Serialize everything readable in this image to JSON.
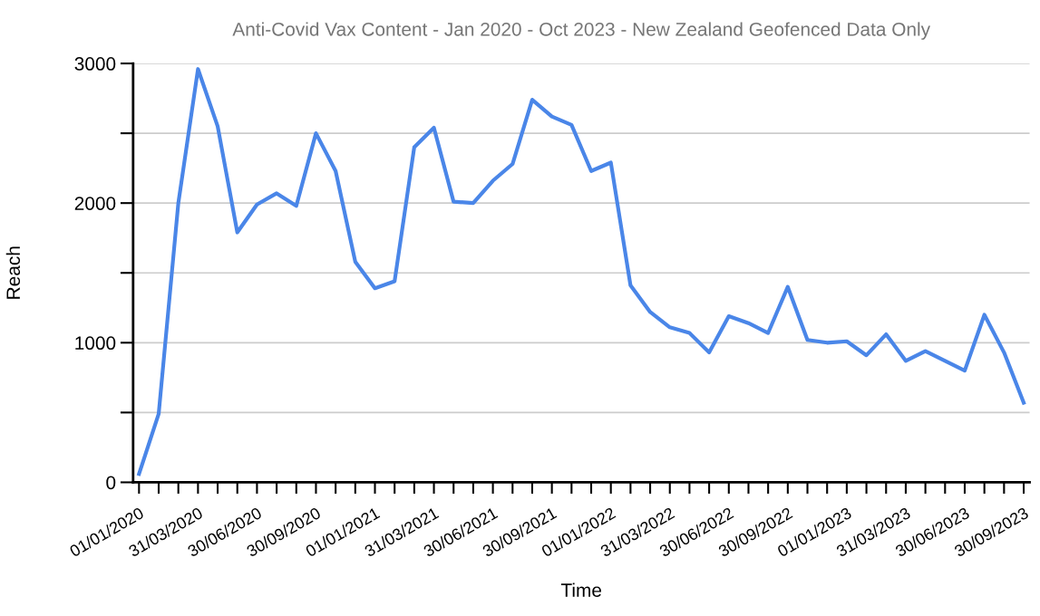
{
  "chart_data": {
    "type": "line",
    "title": "Anti-Covid Vax Content - Jan 2020 - Oct 2023 - New Zealand Geofenced Data Only",
    "xlabel": "Time",
    "ylabel": "Reach",
    "categories": [
      "01/01/2020",
      null,
      null,
      "31/03/2020",
      null,
      null,
      "30/06/2020",
      null,
      null,
      "30/09/2020",
      null,
      null,
      "01/01/2021",
      null,
      null,
      "31/03/2021",
      null,
      null,
      "30/06/2021",
      null,
      null,
      "30/09/2021",
      null,
      null,
      "01/01/2022",
      null,
      null,
      "31/03/2022",
      null,
      null,
      "30/06/2022",
      null,
      null,
      "30/09/2022",
      null,
      null,
      "01/01/2023",
      null,
      null,
      "31/03/2023",
      null,
      null,
      "30/06/2023",
      null,
      null,
      "30/09/2023"
    ],
    "series": [
      {
        "color": "#4a86e8",
        "values": [
          60,
          490,
          2000,
          2960,
          2550,
          1790,
          1990,
          2070,
          1980,
          2500,
          2230,
          1580,
          1390,
          1440,
          2400,
          2540,
          2010,
          2000,
          2160,
          2280,
          2740,
          2620,
          2560,
          2230,
          2290,
          1410,
          1220,
          1110,
          1070,
          930,
          1190,
          1140,
          1070,
          1400,
          1020,
          1000,
          1010,
          910,
          1060,
          870,
          940,
          870,
          800,
          1200,
          930,
          570
        ]
      }
    ],
    "ylim": [
      0,
      3000
    ],
    "yticks": [
      0,
      {
        "value": 500,
        "label": null
      },
      1000,
      {
        "value": 1500,
        "label": null
      },
      2000,
      {
        "value": 2500,
        "label": null
      },
      3000
    ],
    "grid": "y",
    "marker": "none",
    "line_style": "solid"
  }
}
